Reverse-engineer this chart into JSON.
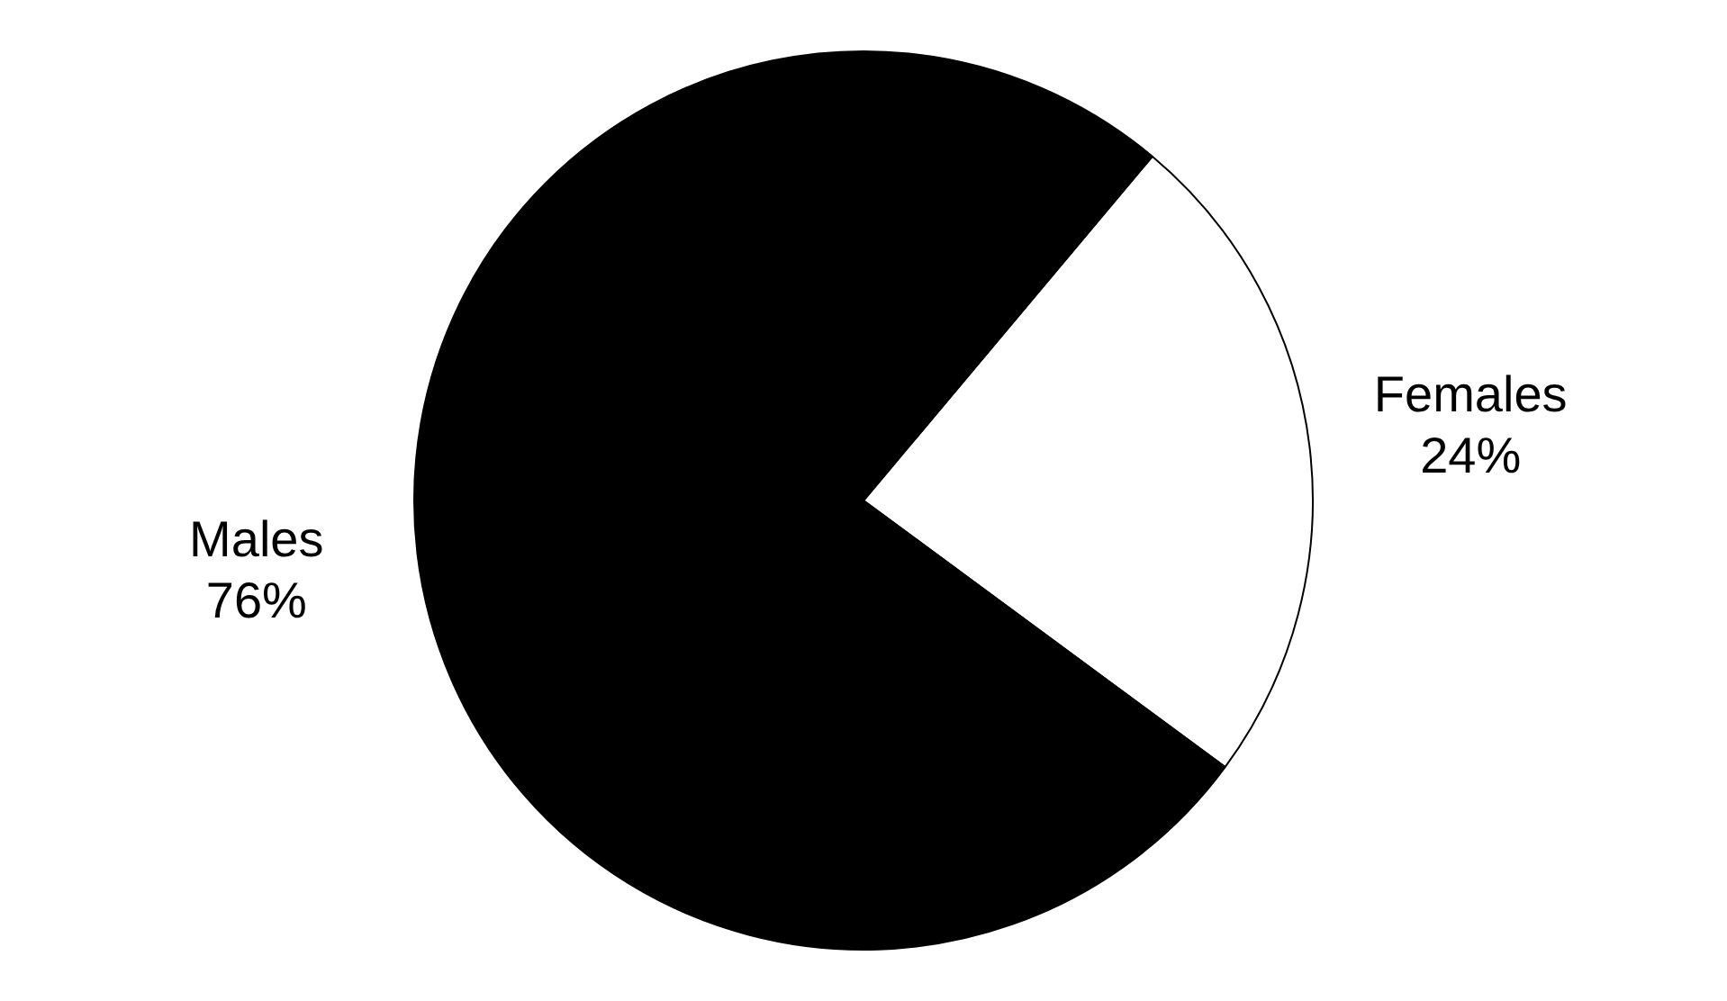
{
  "chart_data": {
    "type": "pie",
    "categories": [
      "Females",
      "Males"
    ],
    "values": [
      24,
      76
    ],
    "colors": [
      "#ffffff",
      "#000000"
    ],
    "value_labels": [
      "24%",
      "76%"
    ],
    "legend": false
  }
}
